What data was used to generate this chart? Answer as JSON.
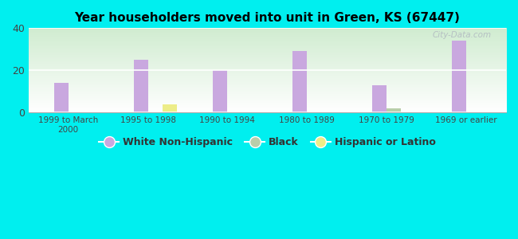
{
  "title": "Year householders moved into unit in Green, KS (67447)",
  "background_color": "#00EFEF",
  "categories": [
    "1999 to March\n2000",
    "1995 to 1998",
    "1990 to 1994",
    "1980 to 1989",
    "1970 to 1979",
    "1969 or earlier"
  ],
  "white_non_hispanic": [
    14,
    25,
    20,
    29,
    13,
    34
  ],
  "black": [
    0,
    0,
    0,
    0,
    2,
    0
  ],
  "hispanic_or_latino": [
    0,
    4,
    0,
    0,
    0,
    0
  ],
  "bar_width": 0.18,
  "ylim": [
    0,
    40
  ],
  "yticks": [
    0,
    20,
    40
  ],
  "white_color": "#c9a8df",
  "black_color": "#b8ceaa",
  "hispanic_color": "#eded88",
  "plot_bg_top_left": "#d0ecd0",
  "plot_bg_bottom_right": "#ffffff",
  "watermark": "City-Data.com"
}
